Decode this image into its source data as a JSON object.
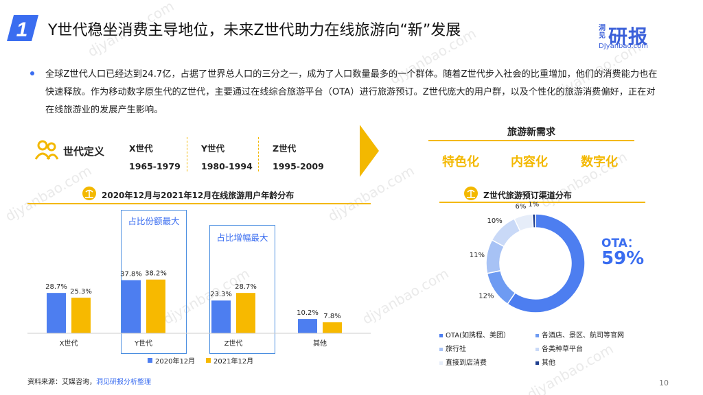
{
  "page": {
    "number_badge": "1",
    "title": "Y世代稳坐消费主导地位，未来Z世代助力在线旅游向“新”发展",
    "logo_small": "洞见",
    "logo_big": "研报",
    "logo_url": "DJyanbao.com",
    "intro": "全球Z世代人口已经达到24.7亿，占据了世界总人口的三分之一，成为了人口数量最多的一个群体。随着Z世代步入社会的比重增加，他们的消费能力也在快速释放。作为移动数字原生代的Z世代，主要通过在线综合旅游平台（OTA）进行旅游预订。Z世代庞大的用户群，以及个性化的旅游消费偏好，正在对在线旅游业的发展产生影响。",
    "source_prefix": "资料来源：艾媒咨询，",
    "source_highlight": "洞见研报分析整理",
    "page_number": "10",
    "watermark": "djyanbao.com"
  },
  "generation": {
    "title": "世代定义",
    "items": [
      {
        "name": "X世代",
        "range": "1965-1979"
      },
      {
        "name": "Y世代",
        "range": "1980-1994"
      },
      {
        "name": "Z世代",
        "range": "1995-2009"
      }
    ]
  },
  "needs": {
    "title": "旅游新需求",
    "items": [
      "特色化",
      "内容化",
      "数字化"
    ]
  },
  "colors": {
    "blue": "#4d7ef0",
    "yellow": "#f7b900",
    "accent": "#f3b800"
  },
  "chart_data": [
    {
      "type": "bar",
      "title": "2020年12月与2021年12月在线旅游用户年龄分布",
      "categories": [
        "X世代",
        "Y世代",
        "Z世代",
        "其他"
      ],
      "series": [
        {
          "name": "2020年12月",
          "values": [
            28.7,
            37.8,
            23.3,
            10.2
          ],
          "color": "#4d7ef0"
        },
        {
          "name": "2021年12月",
          "values": [
            25.3,
            38.2,
            28.7,
            7.8
          ],
          "color": "#f7b900"
        }
      ],
      "unit": "%",
      "annotations": [
        "占比份额最大",
        "占比增幅最大"
      ],
      "ylim": [
        0,
        40
      ]
    },
    {
      "type": "pie",
      "title": "Z世代旅游预订渠道分布",
      "labels": [
        "OTA(如携程、美团）",
        "各酒店、景区、航司等官网",
        "旅行社",
        "各类种草平台",
        "直接到店消费",
        "其他"
      ],
      "values": [
        59,
        12,
        11,
        10,
        6,
        1
      ],
      "colors": [
        "#4d7ef0",
        "#6e9bf2",
        "#a7c2f5",
        "#c9d9f7",
        "#e6edf9",
        "#1f3f8f"
      ],
      "center_label": "OTA：",
      "center_value": "59%"
    }
  ]
}
